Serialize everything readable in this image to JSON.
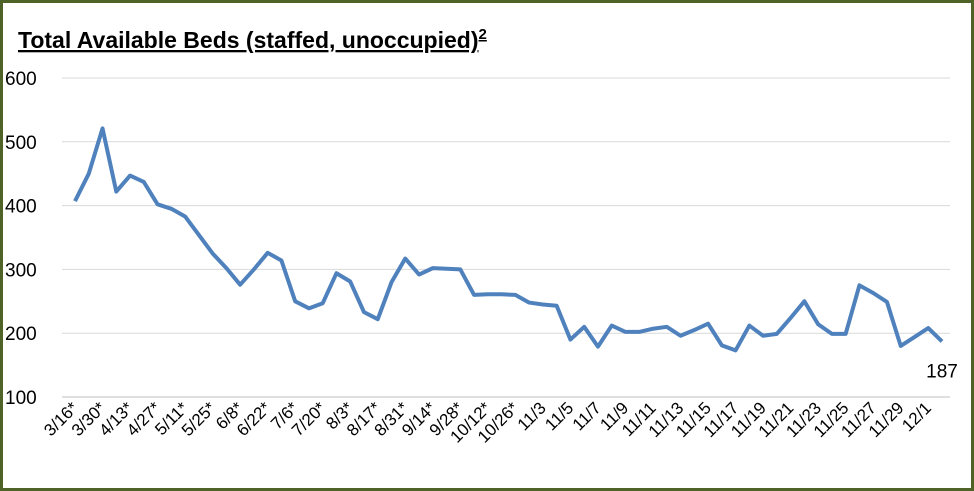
{
  "chart_data": {
    "type": "line",
    "title": "Total Available Beds (staffed, unoccupied)",
    "title_superscript": "2",
    "categories": [
      "3/16*",
      null,
      "3/30*",
      null,
      "4/13*",
      null,
      "4/27*",
      null,
      "5/11*",
      null,
      "5/25*",
      null,
      "6/8*",
      null,
      "6/22*",
      null,
      "7/6*",
      null,
      "7/20*",
      null,
      "8/3*",
      null,
      "8/17*",
      null,
      "8/31*",
      null,
      "9/14*",
      null,
      "9/28*",
      null,
      "10/12*",
      null,
      "10/26*",
      null,
      "11/3",
      null,
      "11/5",
      null,
      "11/7",
      null,
      "11/9",
      null,
      "11/11",
      null,
      "11/13",
      null,
      "11/15",
      null,
      "11/17",
      null,
      "11/19",
      null,
      "11/21",
      null,
      "11/23",
      null,
      "11/25",
      null,
      "11/27",
      null,
      "11/29",
      null,
      "12/1",
      null
    ],
    "series": [
      {
        "name": "Total Available Beds",
        "color": "#4f81bd",
        "values": [
          407,
          450,
          521,
          422,
          447,
          437,
          402,
          395,
          383,
          354,
          325,
          302,
          276,
          300,
          326,
          314,
          250,
          239,
          247,
          294,
          281,
          233,
          222,
          280,
          317,
          292,
          302,
          301,
          300,
          260,
          261,
          261,
          260,
          248,
          245,
          243,
          190,
          210,
          179,
          212,
          202,
          202,
          207,
          210,
          196,
          205,
          215,
          181,
          173,
          212,
          196,
          199,
          224,
          250,
          214,
          199,
          199,
          275,
          263,
          249,
          180,
          194,
          208,
          187
        ]
      }
    ],
    "data_labels": [
      {
        "index": 63,
        "text": "187"
      }
    ],
    "ylim": [
      100,
      600
    ],
    "yticks": [
      100,
      200,
      300,
      400,
      500,
      600
    ],
    "grid": true
  }
}
